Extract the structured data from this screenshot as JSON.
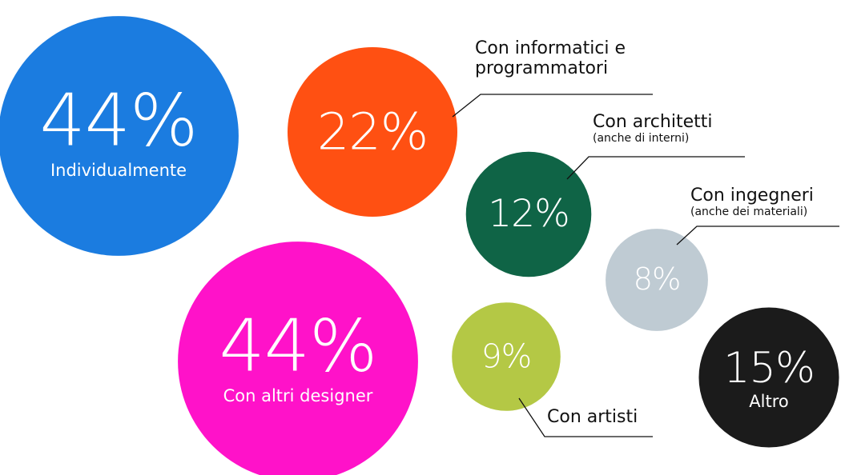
{
  "chart_data": {
    "type": "bubble",
    "categories": [
      "Individualmente",
      "Con informatici e programmatori",
      "Con architetti",
      "Con ingegneri",
      "Con altri designer",
      "Con artisti",
      "Altro"
    ],
    "notes": [
      null,
      null,
      "(anche di interni)",
      "(anche dei materiali)",
      null,
      null,
      null
    ],
    "values": [
      44,
      22,
      12,
      8,
      44,
      9,
      15
    ],
    "value_labels": [
      "44%",
      "22%",
      "12%",
      "8%",
      "44%",
      "9%",
      "15%"
    ],
    "colors": [
      "#1b7ce0",
      "#ff5012",
      "#0f6446",
      "#bfcbd3",
      "#ff12c9",
      "#b4c845",
      "#1b1b1b"
    ]
  }
}
